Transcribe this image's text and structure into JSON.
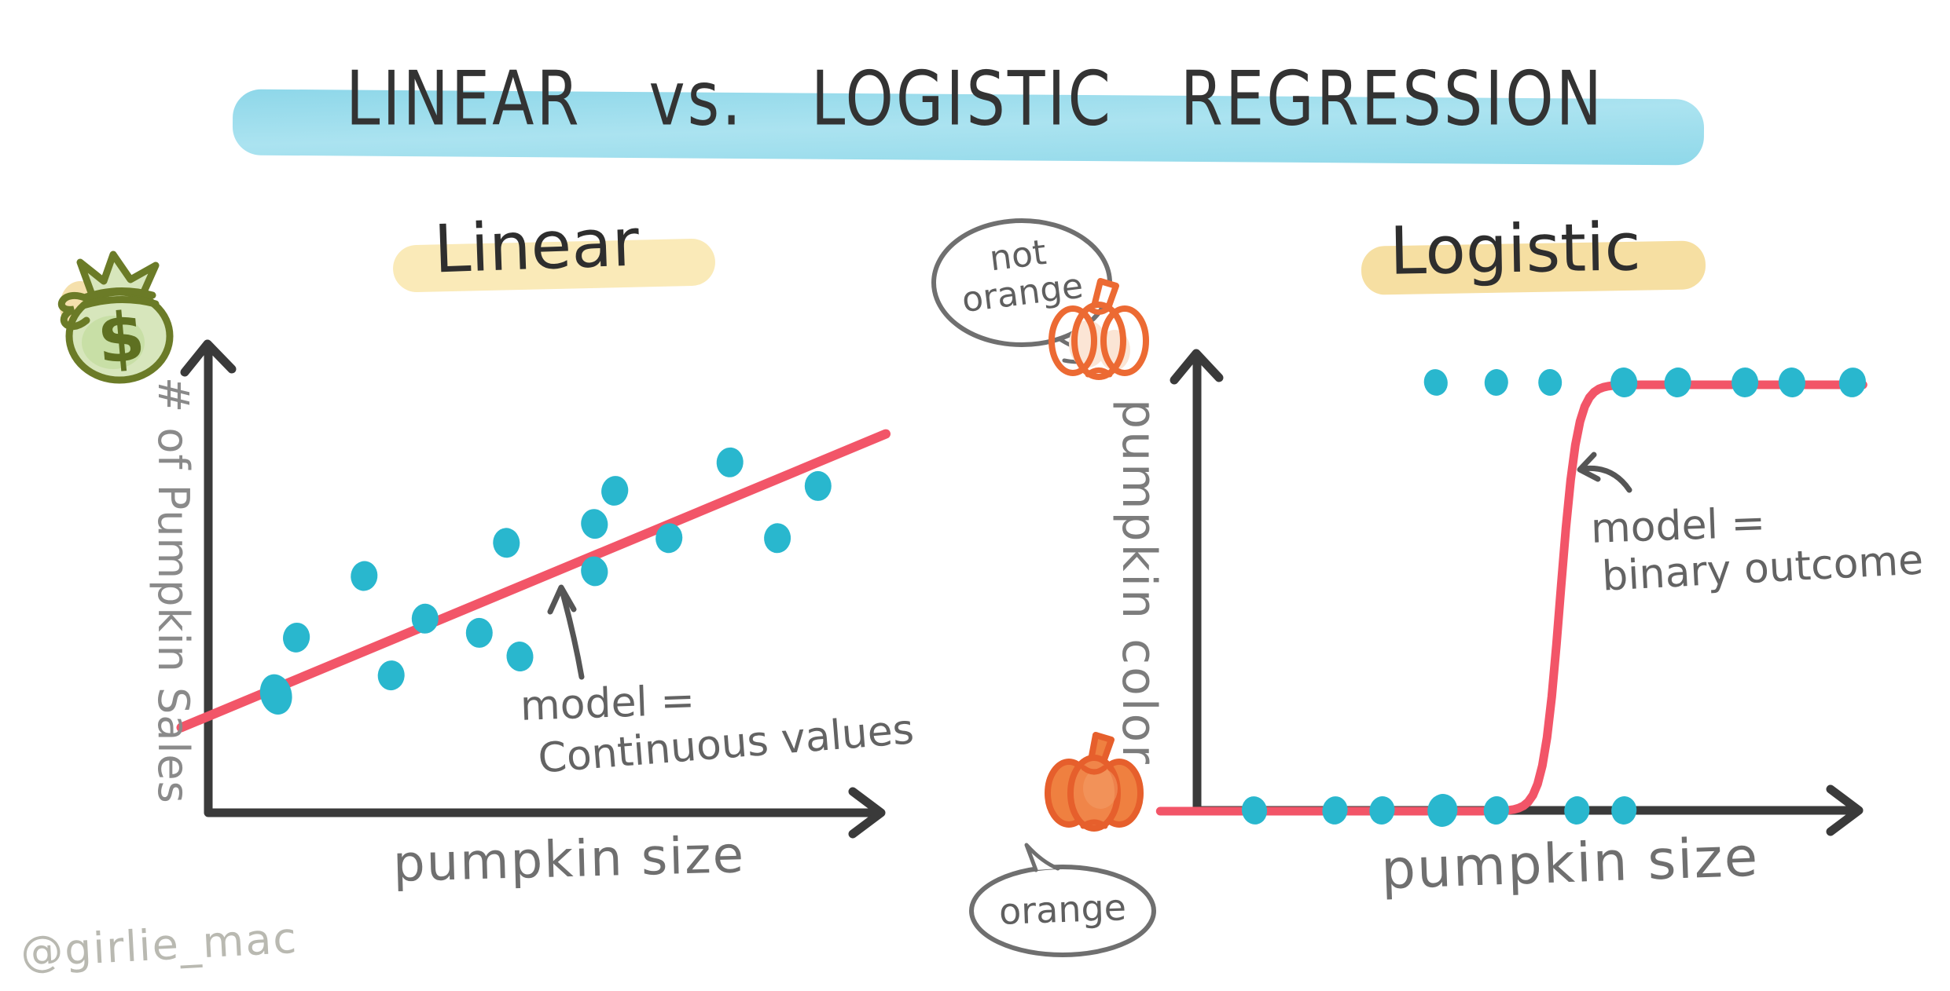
{
  "title": {
    "text": "LINEAR vs. LOGISTIC REGRESSION"
  },
  "watermark": "@girlie_mac",
  "colors": {
    "title_highlight": "#9adcEC",
    "heading_highlight_linear": "#faeab8",
    "heading_highlight_logistic": "#f6dfa2",
    "dot": "#29b7ce",
    "line": "#f25568",
    "axis": "#3a3a3a",
    "label_gray": "#8a8a8a",
    "annotation_gray": "#636363",
    "bubble_gray": "#6f6f6f",
    "pumpkin_orange": "#ef8040",
    "pumpkin_outline": "#ec6a33",
    "money_bag_green": "#6b7b27",
    "money_bag_fill": "#d7e6bc",
    "watermark_gray": "#b9b9b1"
  },
  "left_panel": {
    "heading": "Linear",
    "y_axis_label": "# of Pumpkin Sales",
    "x_axis_label": "pumpkin size",
    "annotation": {
      "line1": "model =",
      "line2": "Continuous values"
    },
    "money_symbol": "$",
    "icon": "money-bag-icon"
  },
  "right_panel": {
    "heading": "Logistic",
    "y_axis_label": "pumpkin color",
    "x_axis_label": "pumpkin size",
    "annotation": {
      "line1": "model =",
      "line2": "binary outcome"
    },
    "bubble_top": "not orange",
    "bubble_bottom": "orange",
    "icons": [
      "pumpkin-outline-icon",
      "pumpkin-filled-icon"
    ]
  },
  "chart_data": [
    {
      "type": "scatter",
      "title": "Linear",
      "xlabel": "pumpkin size",
      "ylabel": "# of Pumpkin Sales",
      "x_range": [
        0,
        10
      ],
      "y_range": [
        0,
        10
      ],
      "grid": false,
      "points": [
        [
          1.0,
          2.5
        ],
        [
          1.3,
          3.7
        ],
        [
          2.3,
          5.0
        ],
        [
          2.7,
          2.9
        ],
        [
          3.2,
          4.1
        ],
        [
          4.0,
          3.8
        ],
        [
          4.4,
          5.7
        ],
        [
          4.6,
          3.3
        ],
        [
          5.7,
          6.1
        ],
        [
          5.7,
          5.1
        ],
        [
          6.0,
          6.8
        ],
        [
          6.8,
          5.8
        ],
        [
          7.7,
          7.4
        ],
        [
          8.4,
          5.8
        ],
        [
          9.0,
          6.9
        ]
      ],
      "trend_line": {
        "x": [
          -0.4,
          10.0
        ],
        "y": [
          1.8,
          8.0
        ]
      },
      "annotation": "model = Continuous values"
    },
    {
      "type": "sigmoid",
      "title": "Logistic",
      "xlabel": "pumpkin size",
      "ylabel": "pumpkin color",
      "x_range": [
        0,
        10
      ],
      "y_values": [
        "orange (0)",
        "not orange (1)"
      ],
      "grid": false,
      "points_y0_x": [
        0.9,
        2.1,
        2.8,
        3.7,
        4.5,
        5.7,
        6.4
      ],
      "points_y1_x": [
        3.6,
        4.5,
        5.3,
        6.4,
        7.2,
        8.2,
        8.9,
        9.8
      ],
      "curve": {
        "midpoint_x": 5.45,
        "steepness": 8,
        "x_start": -0.5,
        "x_end": 10.0,
        "y_low": 0,
        "y_high": 1
      },
      "annotation": "model = binary outcome"
    }
  ]
}
